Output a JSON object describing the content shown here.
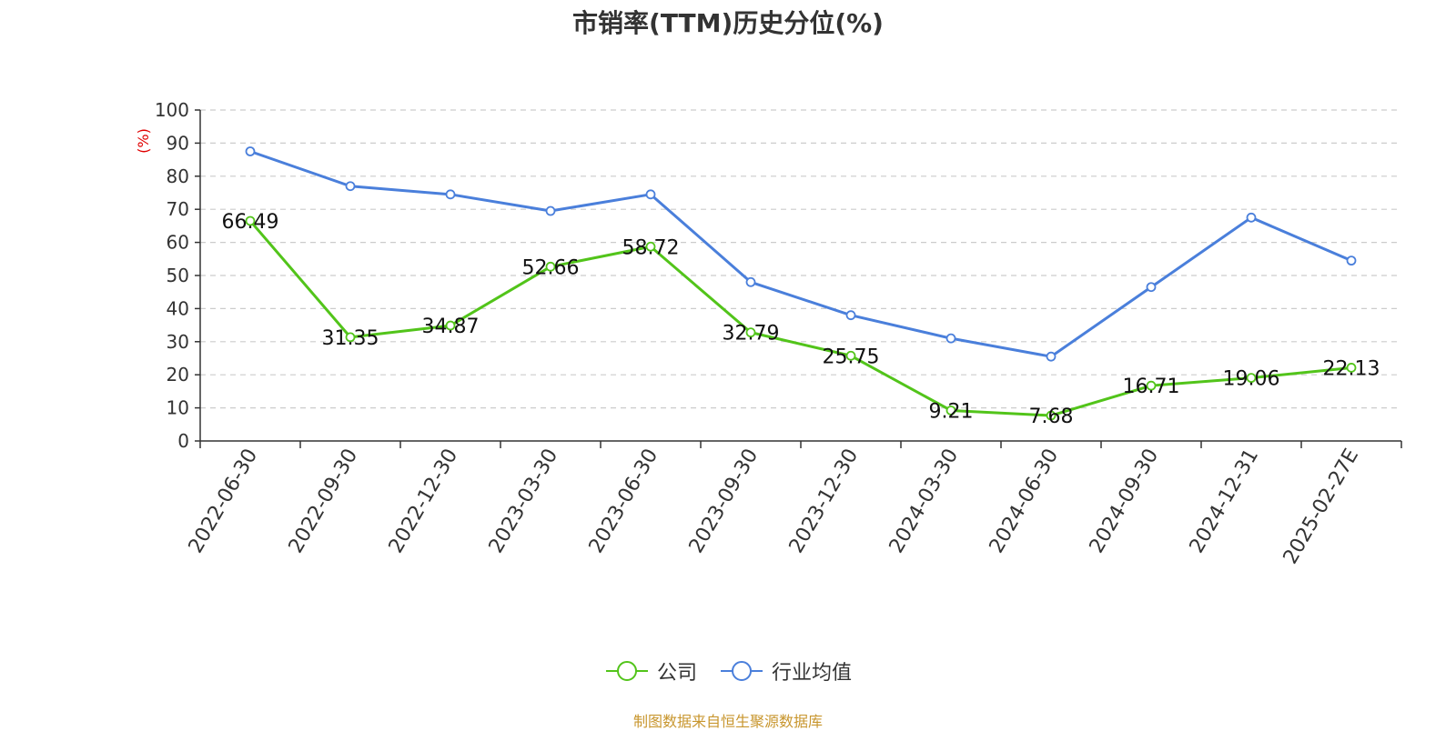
{
  "chart_data": {
    "type": "line",
    "title": "市销率(TTM)历史分位(%)",
    "ylabel": "(%)",
    "xlabel": "",
    "ylim": [
      0,
      100
    ],
    "yticks": [
      0,
      10,
      20,
      30,
      40,
      50,
      60,
      70,
      80,
      90,
      100
    ],
    "grid": true,
    "legend_position": "bottom",
    "categories": [
      "2022-06-30",
      "2022-09-30",
      "2022-12-30",
      "2023-03-30",
      "2023-06-30",
      "2023-09-30",
      "2023-12-30",
      "2024-03-30",
      "2024-06-30",
      "2024-09-30",
      "2024-12-31",
      "2025-02-27E"
    ],
    "series": [
      {
        "name": "公司",
        "color": "#52c41a",
        "values": [
          66.49,
          31.35,
          34.87,
          52.66,
          58.72,
          32.79,
          25.75,
          9.21,
          7.68,
          16.71,
          19.06,
          22.13
        ],
        "data_labels": [
          "66.49",
          "31.35",
          "34.87",
          "52.66",
          "58.72",
          "32.79",
          "25.75",
          "9.21",
          "7.68",
          "16.71",
          "19.06",
          "22.13"
        ]
      },
      {
        "name": "行业均值",
        "color": "#4a7fdb",
        "values": [
          87.5,
          77.0,
          74.5,
          69.5,
          74.5,
          48.0,
          38.0,
          31.0,
          25.5,
          46.5,
          67.5,
          54.5
        ]
      }
    ]
  },
  "source_note": "制图数据来自恒生聚源数据库",
  "colors": {
    "axis": "#333333",
    "grid": "#cccccc",
    "ylabel": "#e00000",
    "source": "#c8962e"
  }
}
